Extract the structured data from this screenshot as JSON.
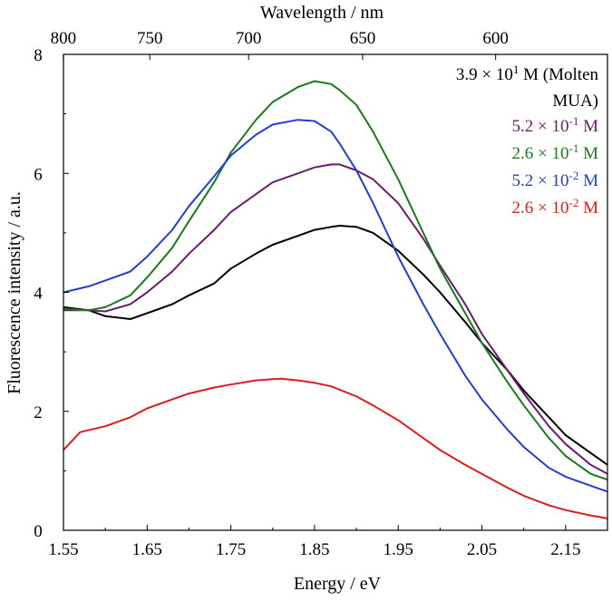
{
  "chart_data": {
    "type": "line",
    "xlabel": "Energy / eV",
    "ylabel": "Fluorescence intensity / a.u.",
    "top_xlabel": "Wavelength / nm",
    "xlim": [
      1.55,
      2.2
    ],
    "ylim": [
      0,
      8
    ],
    "x_ticks": [
      1.55,
      1.65,
      1.75,
      1.85,
      1.95,
      2.05,
      2.15
    ],
    "x_tick_labels": [
      "1.55",
      "1.65",
      "1.75",
      "1.85",
      "1.95",
      "2.05",
      "2.15"
    ],
    "y_ticks": [
      0,
      2,
      4,
      6,
      8
    ],
    "y_tick_labels": [
      "0",
      "2",
      "4",
      "6",
      "8"
    ],
    "top_ticks": [
      800,
      750,
      700,
      650,
      600
    ],
    "top_tick_labels": [
      "800",
      "750",
      "700",
      "650",
      "600"
    ],
    "legend_position": "top-right",
    "series": [
      {
        "name": "3.9 × 10^1 M (Molten MUA)",
        "legend_lines": [
          "3.9 × 10",
          "1",
          " M (Molten",
          "MUA)"
        ],
        "color": "#000000",
        "x": [
          1.55,
          1.58,
          1.6,
          1.63,
          1.65,
          1.68,
          1.7,
          1.73,
          1.75,
          1.78,
          1.8,
          1.83,
          1.85,
          1.87,
          1.88,
          1.9,
          1.92,
          1.95,
          1.98,
          2.0,
          2.03,
          2.05,
          2.08,
          2.1,
          2.13,
          2.15,
          2.18,
          2.2
        ],
        "y": [
          3.75,
          3.7,
          3.6,
          3.55,
          3.65,
          3.8,
          3.95,
          4.15,
          4.4,
          4.65,
          4.8,
          4.95,
          5.05,
          5.1,
          5.12,
          5.1,
          5.0,
          4.7,
          4.3,
          4.0,
          3.5,
          3.15,
          2.7,
          2.35,
          1.9,
          1.6,
          1.3,
          1.1
        ]
      },
      {
        "name": "5.2 × 10^-1 M",
        "legend_lines": [
          "5.2 × 10",
          "-1",
          " M"
        ],
        "color": "#6a1b6e",
        "x": [
          1.55,
          1.58,
          1.6,
          1.63,
          1.65,
          1.68,
          1.7,
          1.73,
          1.75,
          1.78,
          1.8,
          1.83,
          1.85,
          1.87,
          1.88,
          1.9,
          1.92,
          1.95,
          1.98,
          2.0,
          2.03,
          2.05,
          2.08,
          2.1,
          2.13,
          2.15,
          2.18,
          2.2
        ],
        "y": [
          3.7,
          3.7,
          3.68,
          3.8,
          4.0,
          4.35,
          4.65,
          5.05,
          5.35,
          5.65,
          5.85,
          6.0,
          6.1,
          6.15,
          6.15,
          6.05,
          5.9,
          5.5,
          4.9,
          4.45,
          3.8,
          3.3,
          2.7,
          2.3,
          1.75,
          1.45,
          1.1,
          0.95
        ]
      },
      {
        "name": "2.6 × 10^-1 M",
        "legend_lines": [
          "2.6 × 10",
          "-1",
          " M"
        ],
        "color": "#1a7a1a",
        "x": [
          1.55,
          1.58,
          1.6,
          1.63,
          1.65,
          1.68,
          1.7,
          1.73,
          1.75,
          1.78,
          1.8,
          1.83,
          1.85,
          1.87,
          1.88,
          1.9,
          1.92,
          1.95,
          1.98,
          2.0,
          2.03,
          2.05,
          2.08,
          2.1,
          2.13,
          2.15,
          2.18,
          2.2
        ],
        "y": [
          3.72,
          3.7,
          3.75,
          3.95,
          4.25,
          4.75,
          5.2,
          5.85,
          6.35,
          6.9,
          7.2,
          7.45,
          7.55,
          7.5,
          7.4,
          7.15,
          6.7,
          5.9,
          5.0,
          4.4,
          3.65,
          3.15,
          2.5,
          2.1,
          1.55,
          1.25,
          0.95,
          0.85
        ]
      },
      {
        "name": "5.2 × 10^-2 M",
        "legend_lines": [
          "5.2 × 10",
          "-2",
          " M"
        ],
        "color": "#1f3fd6",
        "x": [
          1.55,
          1.58,
          1.6,
          1.63,
          1.65,
          1.68,
          1.7,
          1.73,
          1.75,
          1.78,
          1.8,
          1.83,
          1.85,
          1.87,
          1.88,
          1.9,
          1.92,
          1.95,
          1.98,
          2.0,
          2.03,
          2.05,
          2.08,
          2.1,
          2.13,
          2.15,
          2.18,
          2.2
        ],
        "y": [
          4.0,
          4.1,
          4.2,
          4.35,
          4.6,
          5.05,
          5.45,
          5.95,
          6.3,
          6.65,
          6.82,
          6.9,
          6.88,
          6.7,
          6.5,
          6.05,
          5.5,
          4.6,
          3.8,
          3.3,
          2.6,
          2.2,
          1.7,
          1.4,
          1.05,
          0.9,
          0.75,
          0.65
        ]
      },
      {
        "name": "2.6 × 10^-2 M",
        "legend_lines": [
          "2.6 × 10",
          "-2",
          " M"
        ],
        "color": "#e01b1b",
        "x": [
          1.55,
          1.57,
          1.6,
          1.63,
          1.65,
          1.68,
          1.7,
          1.73,
          1.75,
          1.78,
          1.8,
          1.81,
          1.83,
          1.85,
          1.87,
          1.9,
          1.92,
          1.95,
          1.98,
          2.0,
          2.03,
          2.05,
          2.08,
          2.1,
          2.13,
          2.15,
          2.18,
          2.2
        ],
        "y": [
          1.35,
          1.65,
          1.75,
          1.9,
          2.05,
          2.2,
          2.3,
          2.4,
          2.45,
          2.52,
          2.54,
          2.55,
          2.52,
          2.48,
          2.42,
          2.25,
          2.1,
          1.85,
          1.55,
          1.35,
          1.1,
          0.95,
          0.72,
          0.58,
          0.42,
          0.34,
          0.25,
          0.2
        ]
      }
    ]
  }
}
